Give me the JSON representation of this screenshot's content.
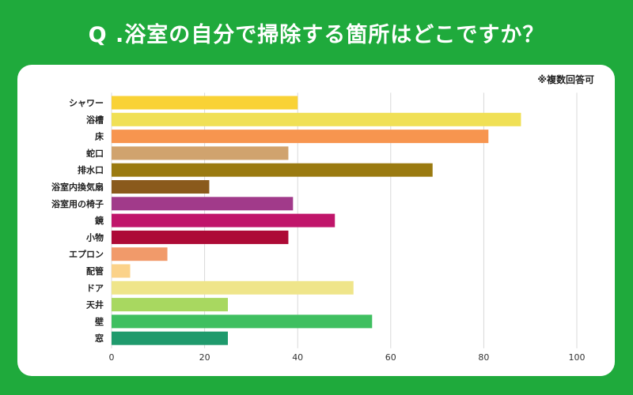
{
  "header": {
    "title": "Q .浴室の自分で掃除する箇所はどこですか？"
  },
  "panel": {
    "note": "※複数回答可"
  },
  "chart_data": {
    "type": "bar",
    "orientation": "horizontal",
    "title": "Q .浴室の自分で掃除する箇所はどこですか？",
    "note": "※複数回答可",
    "categories": [
      "シャワー",
      "浴槽",
      "床",
      "蛇口",
      "排水口",
      "浴室内換気扇",
      "浴室用の椅子",
      "鏡",
      "小物",
      "エプロン",
      "配管",
      "ドア",
      "天井",
      "壁",
      "窓"
    ],
    "values": [
      40,
      88,
      81,
      38,
      69,
      21,
      39,
      48,
      38,
      12,
      4,
      52,
      25,
      56,
      25
    ],
    "colors": [
      "#f9d236",
      "#f0e055",
      "#f7954f",
      "#d0a36e",
      "#9a7a10",
      "#8a5a1c",
      "#a13a8a",
      "#c0156a",
      "#ad0a36",
      "#f19a6a",
      "#fbd28a",
      "#efe58a",
      "#a8d860",
      "#3fbf60",
      "#1f9a6c"
    ],
    "xlim": [
      0,
      100
    ],
    "xticks": [
      0,
      20,
      40,
      60,
      80,
      100
    ],
    "xlabel": "",
    "ylabel": "",
    "grid": true
  }
}
